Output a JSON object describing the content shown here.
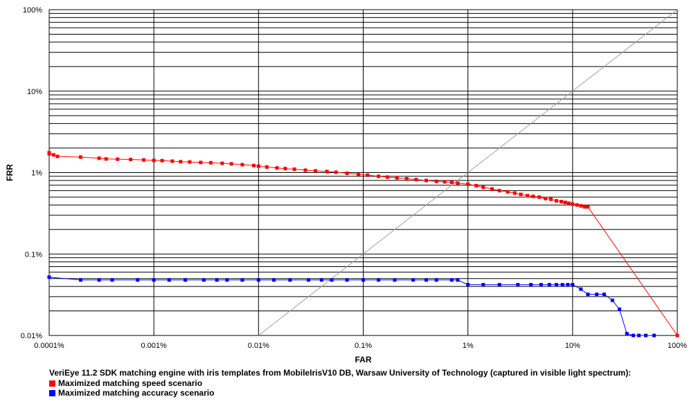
{
  "chart_data": {
    "type": "line",
    "xscale": "log",
    "yscale": "log",
    "xlabel": "FAR",
    "ylabel": "FRR",
    "xlim": [
      0.0001,
      100
    ],
    "ylim": [
      0.01,
      100
    ],
    "x_ticks": [
      "0.0001%",
      "0.001%",
      "0.01%",
      "0.1%",
      "1%",
      "10%",
      "100%"
    ],
    "y_ticks": [
      "0.01%",
      "0.1%",
      "1%",
      "10%",
      "100%"
    ],
    "caption": "VeriEye 11.2 SDK matching engine with iris templates from MobileIrisV10 DB, Warsaw University of Technology (captured in visible light spectrum):",
    "grid": true,
    "legend_position": "bottom-left",
    "series": [
      {
        "name": "Maximized matching speed scenario",
        "color": "#ff0000",
        "points": [
          [
            0.0001,
            1.75
          ],
          [
            0.0001,
            1.7
          ],
          [
            0.00011,
            1.65
          ],
          [
            0.00012,
            1.58
          ],
          [
            0.0002,
            1.55
          ],
          [
            0.0003,
            1.5
          ],
          [
            0.00035,
            1.47
          ],
          [
            0.00045,
            1.46
          ],
          [
            0.0006,
            1.45
          ],
          [
            0.0008,
            1.43
          ],
          [
            0.001,
            1.41
          ],
          [
            0.0012,
            1.4
          ],
          [
            0.0015,
            1.38
          ],
          [
            0.0018,
            1.36
          ],
          [
            0.0022,
            1.35
          ],
          [
            0.0028,
            1.33
          ],
          [
            0.0035,
            1.32
          ],
          [
            0.0045,
            1.3
          ],
          [
            0.0055,
            1.28
          ],
          [
            0.007,
            1.25
          ],
          [
            0.009,
            1.22
          ],
          [
            0.01,
            1.2
          ],
          [
            0.012,
            1.17
          ],
          [
            0.015,
            1.14
          ],
          [
            0.018,
            1.12
          ],
          [
            0.022,
            1.1
          ],
          [
            0.028,
            1.07
          ],
          [
            0.035,
            1.05
          ],
          [
            0.045,
            1.03
          ],
          [
            0.055,
            1.01
          ],
          [
            0.07,
            0.98
          ],
          [
            0.09,
            0.95
          ],
          [
            0.11,
            0.93
          ],
          [
            0.14,
            0.9
          ],
          [
            0.17,
            0.88
          ],
          [
            0.21,
            0.86
          ],
          [
            0.26,
            0.84
          ],
          [
            0.32,
            0.82
          ],
          [
            0.4,
            0.8
          ],
          [
            0.5,
            0.78
          ],
          [
            0.6,
            0.77
          ],
          [
            0.7,
            0.76
          ],
          [
            0.8,
            0.74
          ],
          [
            1.0,
            0.72
          ],
          [
            1.2,
            0.69
          ],
          [
            1.4,
            0.66
          ],
          [
            1.7,
            0.63
          ],
          [
            2.0,
            0.6
          ],
          [
            2.4,
            0.58
          ],
          [
            2.8,
            0.56
          ],
          [
            3.2,
            0.54
          ],
          [
            3.7,
            0.52
          ],
          [
            4.2,
            0.51
          ],
          [
            4.8,
            0.5
          ],
          [
            5.5,
            0.48
          ],
          [
            6.2,
            0.47
          ],
          [
            7.0,
            0.45
          ],
          [
            7.8,
            0.44
          ],
          [
            8.5,
            0.43
          ],
          [
            9.2,
            0.42
          ],
          [
            10,
            0.41
          ],
          [
            11,
            0.4
          ],
          [
            12,
            0.39
          ],
          [
            13,
            0.38
          ],
          [
            14,
            0.38
          ],
          [
            100,
            0.01
          ]
        ]
      },
      {
        "name": "Maximized matching accuracy scenario",
        "color": "#0000ff",
        "points": [
          [
            0.0001,
            0.052
          ],
          [
            0.0002,
            0.048
          ],
          [
            0.0003,
            0.048
          ],
          [
            0.0004,
            0.048
          ],
          [
            0.0007,
            0.048
          ],
          [
            0.001,
            0.048
          ],
          [
            0.0014,
            0.048
          ],
          [
            0.002,
            0.048
          ],
          [
            0.003,
            0.048
          ],
          [
            0.004,
            0.048
          ],
          [
            0.005,
            0.048
          ],
          [
            0.007,
            0.048
          ],
          [
            0.01,
            0.048
          ],
          [
            0.014,
            0.048
          ],
          [
            0.02,
            0.048
          ],
          [
            0.03,
            0.048
          ],
          [
            0.04,
            0.048
          ],
          [
            0.05,
            0.048
          ],
          [
            0.07,
            0.048
          ],
          [
            0.1,
            0.048
          ],
          [
            0.14,
            0.048
          ],
          [
            0.2,
            0.048
          ],
          [
            0.3,
            0.048
          ],
          [
            0.4,
            0.048
          ],
          [
            0.5,
            0.048
          ],
          [
            0.7,
            0.048
          ],
          [
            0.8,
            0.048
          ],
          [
            1.0,
            0.042
          ],
          [
            1.4,
            0.042
          ],
          [
            2.0,
            0.042
          ],
          [
            3.0,
            0.042
          ],
          [
            4.0,
            0.042
          ],
          [
            5.0,
            0.042
          ],
          [
            6.0,
            0.042
          ],
          [
            7.0,
            0.042
          ],
          [
            8.0,
            0.042
          ],
          [
            9.0,
            0.042
          ],
          [
            10,
            0.042
          ],
          [
            12,
            0.037
          ],
          [
            14,
            0.032
          ],
          [
            17,
            0.032
          ],
          [
            20,
            0.032
          ],
          [
            24,
            0.027
          ],
          [
            28,
            0.021
          ],
          [
            33,
            0.0105
          ],
          [
            38,
            0.01
          ],
          [
            43,
            0.01
          ],
          [
            50,
            0.01
          ],
          [
            60,
            0.01
          ]
        ]
      }
    ],
    "reference_line": {
      "color": "#a0a0a0",
      "from": [
        0.01,
        0.01
      ],
      "to": [
        100,
        100
      ]
    }
  }
}
